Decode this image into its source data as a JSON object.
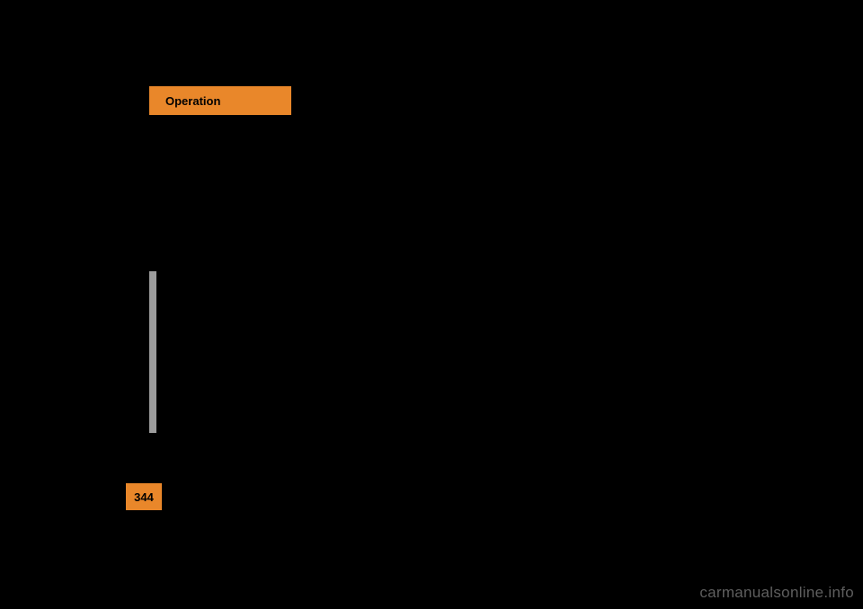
{
  "tab": {
    "label": "Operation"
  },
  "page": {
    "number": "344"
  },
  "watermark": {
    "text": "carmanualsonline.info"
  }
}
